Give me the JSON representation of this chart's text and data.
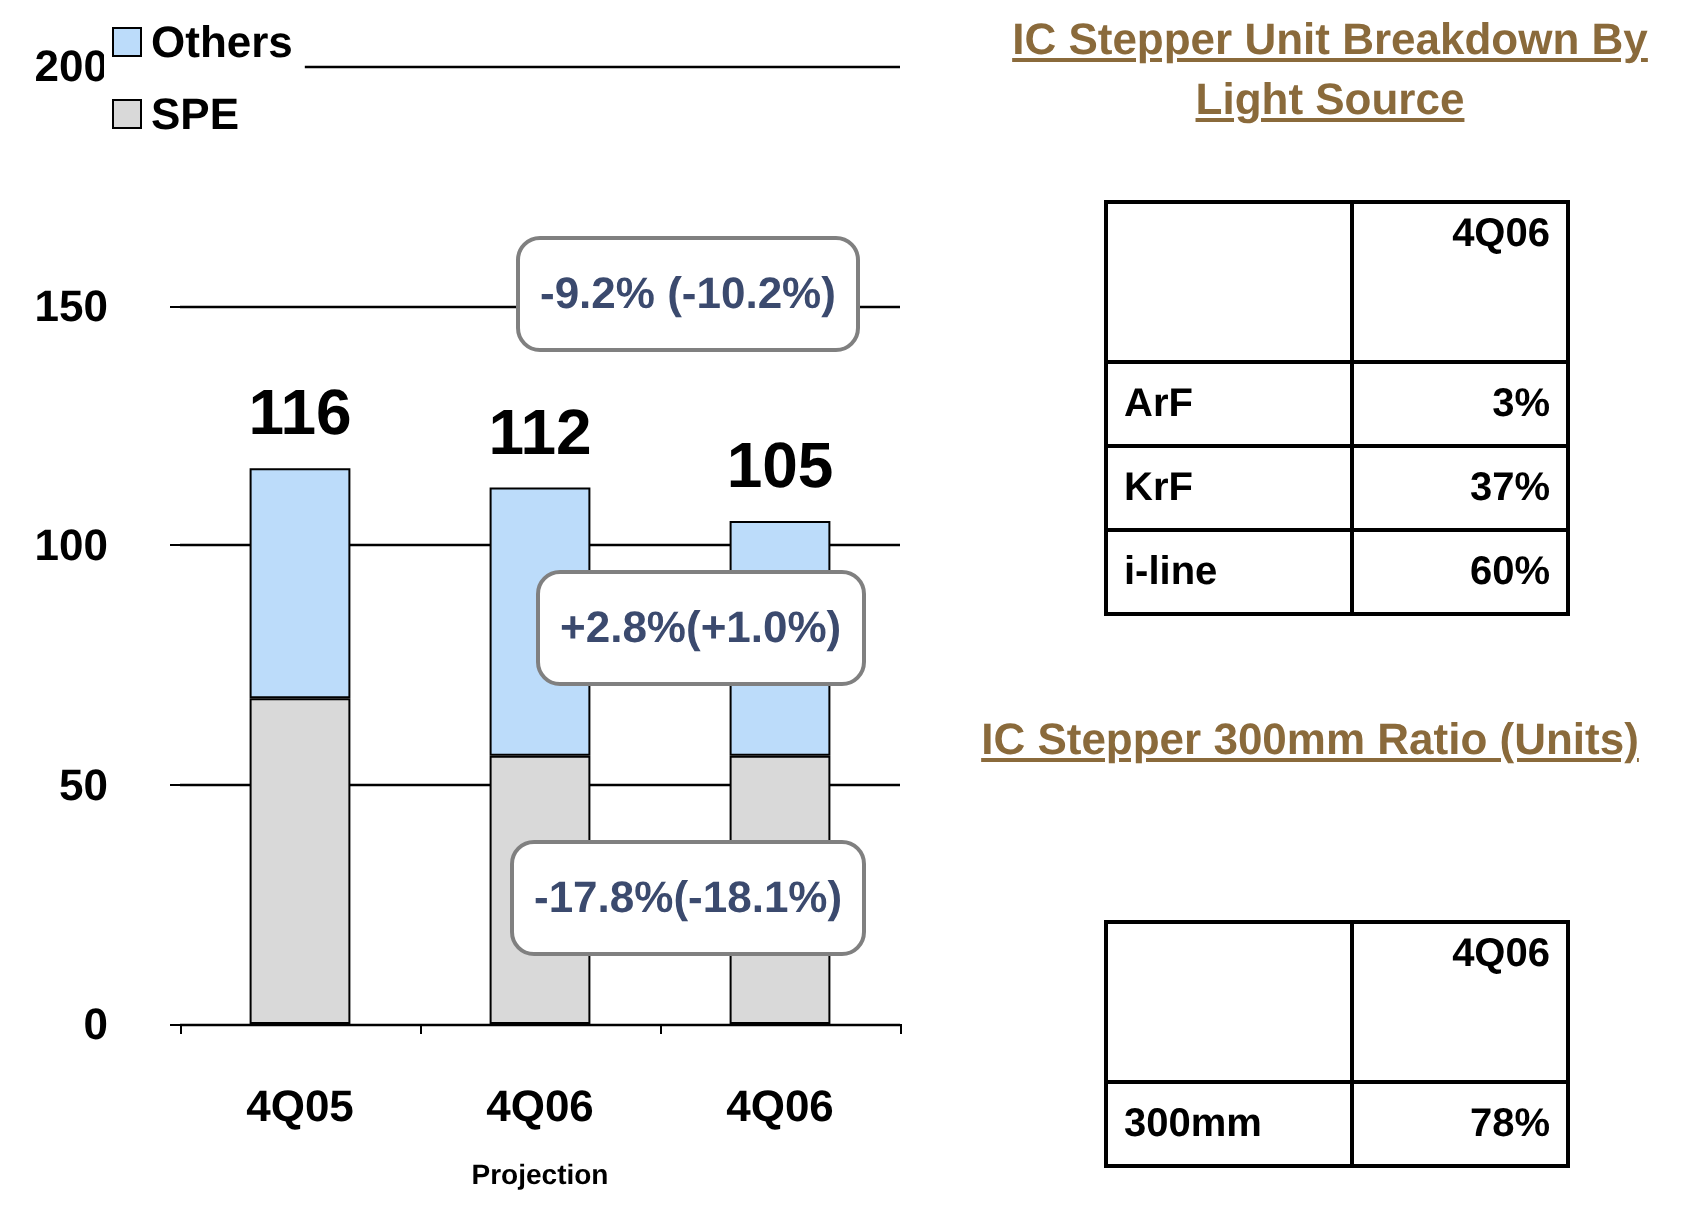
{
  "chart_data": [
    {
      "type": "bar",
      "stacked": true,
      "categories": [
        "4Q05",
        "4Q06",
        "4Q06"
      ],
      "xlabel": "Projection",
      "series": [
        {
          "name": "SPE",
          "color": "#d9d9d9",
          "values": [
            68,
            56,
            56
          ]
        },
        {
          "name": "Others",
          "color": "#bcdcfa",
          "values": [
            48,
            56,
            49
          ]
        }
      ],
      "totals": [
        "116",
        "112",
        "105"
      ],
      "ylim": [
        0,
        200
      ],
      "yticks": [
        0,
        50,
        100,
        150,
        200
      ],
      "grid": "y",
      "legend": "top left",
      "annotations": [
        "-9.2% (-10.2%)",
        "+2.8%(+1.0%)",
        "-17.8%(-18.1%)"
      ]
    },
    {
      "type": "other",
      "title": "IC Stepper Unit Breakdown By Light Source",
      "categories": [
        "ArF",
        "KrF",
        "i-line"
      ],
      "series": [
        {
          "name": "4Q06",
          "values": [
            3,
            37,
            60
          ],
          "value_labels": [
            "3%",
            "37%",
            "60%"
          ]
        }
      ]
    },
    {
      "type": "other",
      "title": "IC Stepper 300mm Ratio (Units)",
      "categories": [
        "300mm"
      ],
      "series": [
        {
          "name": "4Q06",
          "values": [
            78
          ],
          "value_labels": [
            "78%"
          ]
        }
      ]
    }
  ]
}
